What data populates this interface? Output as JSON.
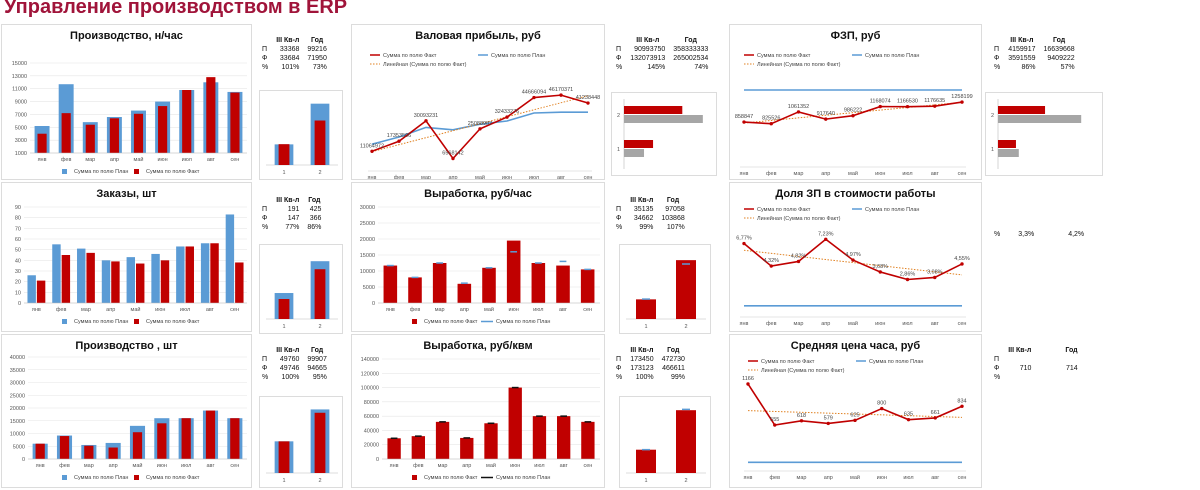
{
  "page": {
    "title": "Управление производством в ERP"
  },
  "colors": {
    "plan": "#5b9bd5",
    "fact": "#c00000",
    "trend": "#e08020",
    "grid": "#e6e6e6",
    "grey": "#a6a6a6",
    "title": "#a0143a"
  },
  "months": [
    "янв",
    "фев",
    "мар",
    "апр",
    "май",
    "июн",
    "июл",
    "авг",
    "сен"
  ],
  "legend": {
    "plan": "Сумма по полю План",
    "fact": "Сумма по полю Факт",
    "trend": "Линейная (Сумма по полю Факт)"
  },
  "stats_header": {
    "q": "III Кв-л",
    "year": "Год"
  },
  "chart_data": [
    {
      "id": "prod_hour",
      "type": "bar",
      "title": "Производство, н/час",
      "categories": [
        "янв",
        "фев",
        "мар",
        "апр",
        "май",
        "июн",
        "июл",
        "авг",
        "сен"
      ],
      "series": [
        {
          "name": "Сумма по полю План",
          "values": [
            5200,
            11700,
            5800,
            6600,
            7600,
            9000,
            10800,
            12000,
            10500
          ]
        },
        {
          "name": "Сумма по полю Факт",
          "values": [
            4000,
            7200,
            5400,
            6400,
            7100,
            8300,
            10800,
            12800,
            10400
          ]
        }
      ],
      "yticks": [
        1000,
        3000,
        5000,
        7000,
        9000,
        11000,
        13000,
        15000
      ],
      "ylim": [
        1000,
        15000
      ],
      "tick_labels": [
        "1000",
        "3000",
        "5000",
        "7000",
        "9000",
        "11000",
        "13000",
        "15000"
      ]
    },
    {
      "id": "orders",
      "type": "bar",
      "title": "Заказы, шт",
      "categories": [
        "янв",
        "фев",
        "мар",
        "апр",
        "май",
        "июн",
        "июл",
        "авг",
        "сен"
      ],
      "series": [
        {
          "name": "Сумма по полю План",
          "values": [
            26,
            55,
            51,
            40,
            43,
            46,
            53,
            56,
            83
          ]
        },
        {
          "name": "Сумма по полю Факт",
          "values": [
            21,
            45,
            47,
            39,
            37,
            40,
            53,
            56,
            38
          ]
        }
      ],
      "yticks": [
        0,
        10,
        20,
        30,
        40,
        50,
        60,
        70,
        80,
        90
      ],
      "ylim": [
        0,
        90
      ],
      "tick_labels": [
        "0",
        "10",
        "20",
        "30",
        "40",
        "50",
        "60",
        "70",
        "80",
        "90"
      ]
    },
    {
      "id": "prod_pcs",
      "type": "bar",
      "title": "Производство , шт",
      "categories": [
        "янв",
        "фев",
        "мар",
        "апр",
        "май",
        "июн",
        "июл",
        "авг",
        "сен"
      ],
      "series": [
        {
          "name": "Сумма по полю План",
          "values": [
            6000,
            9200,
            5500,
            6300,
            13000,
            16000,
            16000,
            19000,
            16000
          ]
        },
        {
          "name": "Сумма по полю Факт",
          "values": [
            6000,
            9000,
            5200,
            4500,
            10500,
            14000,
            16000,
            19000,
            16000
          ]
        }
      ],
      "yticks": [
        0,
        5000,
        10000,
        15000,
        20000,
        25000,
        30000,
        35000,
        40000
      ],
      "ylim": [
        0,
        40000
      ],
      "tick_labels": [
        "0",
        "5000",
        "10000",
        "15000",
        "20000",
        "25000",
        "30000",
        "35000",
        "40000"
      ]
    },
    {
      "id": "gross_profit",
      "type": "line",
      "title": "Валовая прибыль, руб",
      "categories": [
        "янв",
        "фев",
        "мар",
        "апр",
        "май",
        "июн",
        "июл",
        "авг",
        "сен"
      ],
      "series": [
        {
          "name": "Сумма по полю Факт",
          "values": [
            11064972,
            17353506,
            30093231,
            6568142,
            25088987,
            32433276,
            44666094,
            46170371,
            41238448
          ]
        },
        {
          "name": "Сумма по полю План",
          "values": [
            15500000,
            20000000,
            26000000,
            24500000,
            28000000,
            30000000,
            35000000,
            35500000,
            35500000
          ]
        }
      ],
      "labels": [
        "11064972",
        "17353506",
        "30093231",
        "6568142",
        "25088987",
        "32433276",
        "44666094",
        "46170371",
        "41238448"
      ],
      "ylim": [
        0,
        60000000
      ]
    },
    {
      "id": "output_hour",
      "type": "bar",
      "title": "Выработка, руб/час",
      "categories": [
        "янв",
        "фев",
        "мар",
        "апр",
        "май",
        "июн",
        "июл",
        "авг",
        "сен"
      ],
      "series": [
        {
          "name": "Сумма по полю Факт",
          "values": [
            11700,
            8000,
            12500,
            6000,
            11000,
            19500,
            12500,
            11700,
            10500
          ]
        },
        {
          "name": "Сумма по полю План",
          "values": [
            11700,
            8000,
            12500,
            6200,
            11000,
            16000,
            12500,
            13000,
            10500
          ]
        }
      ],
      "yticks": [
        0,
        5000,
        10000,
        15000,
        20000,
        25000,
        30000
      ],
      "ylim": [
        0,
        30000
      ],
      "tick_labels": [
        "0",
        "5000",
        "10000",
        "15000",
        "20000",
        "25000",
        "30000"
      ]
    },
    {
      "id": "output_sqm",
      "type": "bar",
      "title": "Выработка, руб/квм",
      "categories": [
        "янв",
        "фев",
        "мар",
        "апр",
        "май",
        "июн",
        "июл",
        "авг",
        "сен"
      ],
      "series": [
        {
          "name": "Сумма по полю Факт",
          "values": [
            29000,
            32000,
            52000,
            29500,
            50000,
            100000,
            60000,
            60000,
            52000
          ]
        },
        {
          "name": "Сумма по полю План",
          "values": [
            29000,
            32000,
            52000,
            29500,
            50000,
            100000,
            60000,
            60000,
            52000
          ]
        }
      ],
      "yticks": [
        0,
        20000,
        40000,
        60000,
        80000,
        100000,
        120000,
        140000
      ],
      "ylim": [
        0,
        140000
      ],
      "tick_labels": [
        "0",
        "20000",
        "40000",
        "60000",
        "80000",
        "100000",
        "120000",
        "140000"
      ]
    },
    {
      "id": "fzp",
      "type": "line",
      "title": "ФЗП, руб",
      "categories": [
        "янв",
        "фев",
        "мар",
        "апр",
        "май",
        "июн",
        "июл",
        "авг",
        "сен"
      ],
      "series": [
        {
          "name": "Сумма по полю Факт",
          "values": [
            858847,
            825526,
            1061352,
            917640,
            986222,
            1168074,
            1166530,
            1176635,
            1258199
          ]
        },
        {
          "name": "Сумма по полю План",
          "values": [
            1500000,
            1500000,
            1500000,
            1500000,
            1500000,
            1500000,
            1500000,
            1500000,
            1500000
          ]
        }
      ],
      "labels": [
        "858847",
        "825526",
        "1061352",
        "917640",
        "986222",
        "1168074",
        "1166530",
        "1176635",
        "1258199"
      ],
      "ylim": [
        0,
        2000000
      ]
    },
    {
      "id": "zp_share",
      "type": "line",
      "title": "Доля ЗП в стоимости работы",
      "categories": [
        "янв",
        "фев",
        "мар",
        "апр",
        "май",
        "июн",
        "июл",
        "авг",
        "сен"
      ],
      "series": [
        {
          "name": "Сумма по полю Факт",
          "values": [
            6.77,
            4.32,
            4.82,
            7.23,
            4.97,
            3.68,
            2.86,
            3.08,
            4.55
          ]
        },
        {
          "name": "Сумма по полю План",
          "values": [
            0,
            0,
            0,
            0,
            0,
            0,
            0,
            0,
            0
          ]
        }
      ],
      "labels": [
        "6,77%",
        "4,32%",
        "4,82%",
        "7,23%",
        "4,97%",
        "3,68%",
        "2,86%",
        "3,08%",
        "4,55%"
      ],
      "ylim": [
        -1,
        9
      ]
    },
    {
      "id": "avg_price_hour",
      "type": "line",
      "title": "Средняя цена часа, руб",
      "categories": [
        "янв",
        "фев",
        "мар",
        "апр",
        "май",
        "июн",
        "июл",
        "авг",
        "сен"
      ],
      "series": [
        {
          "name": "Сумма по полю Факт",
          "values": [
            1166,
            555,
            618,
            579,
            625,
            800,
            635,
            661,
            834
          ]
        },
        {
          "name": "Сумма по полю План",
          "values": [
            0,
            0,
            0,
            0,
            0,
            0,
            0,
            0,
            0
          ]
        }
      ],
      "labels": [
        "1166",
        "555",
        "618",
        "579",
        "625",
        "800",
        "635",
        "661",
        "834"
      ],
      "ylim": [
        -100,
        1300
      ]
    },
    {
      "id": "mini_prod_hour",
      "type": "bar",
      "categories": [
        "1",
        "2"
      ],
      "series": [
        {
          "name": "План",
          "values": [
            33368,
            99216
          ]
        },
        {
          "name": "Факт",
          "values": [
            33684,
            71950
          ]
        }
      ],
      "ylim": [
        0,
        110000
      ]
    },
    {
      "id": "mini_orders",
      "type": "bar",
      "categories": [
        "1",
        "2"
      ],
      "series": [
        {
          "name": "План",
          "values": [
            191,
            425
          ]
        },
        {
          "name": "Факт",
          "values": [
            147,
            366
          ]
        }
      ],
      "ylim": [
        0,
        500
      ]
    },
    {
      "id": "mini_prod_pcs",
      "type": "bar",
      "categories": [
        "1",
        "2"
      ],
      "series": [
        {
          "name": "План",
          "values": [
            49760,
            99907
          ]
        },
        {
          "name": "Факт",
          "values": [
            49746,
            94665
          ]
        }
      ],
      "ylim": [
        0,
        110000
      ]
    },
    {
      "id": "mini_profit",
      "type": "hbar",
      "categories": [
        "1",
        "2"
      ],
      "series": [
        {
          "name": "Факт",
          "values": [
            132073913,
            265002534
          ]
        },
        {
          "name": "План",
          "values": [
            90993750,
            358333333
          ]
        }
      ],
      "xlim": [
        0,
        400000000
      ]
    },
    {
      "id": "mini_output_hour",
      "type": "bar",
      "categories": [
        "1",
        "2"
      ],
      "series": [
        {
          "name": "Факт",
          "values": [
            34662,
            103868
          ]
        },
        {
          "name": "План",
          "values": [
            35135,
            97058
          ]
        }
      ],
      "ylim": [
        0,
        120000
      ]
    },
    {
      "id": "mini_output_sqm",
      "type": "bar",
      "categories": [
        "1",
        "2"
      ],
      "series": [
        {
          "name": "Факт",
          "values": [
            173123,
            466611
          ]
        },
        {
          "name": "План",
          "values": [
            173450,
            472730
          ]
        }
      ],
      "ylim": [
        0,
        520000
      ]
    },
    {
      "id": "mini_fzp",
      "type": "hbar",
      "categories": [
        "1",
        "2"
      ],
      "series": [
        {
          "name": "Факт",
          "values": [
            3591559,
            9409222
          ]
        },
        {
          "name": "План",
          "values": [
            4159917,
            16639668
          ]
        }
      ],
      "xlim": [
        0,
        20000000
      ]
    }
  ],
  "stats": {
    "prod_hour": {
      "rows": [
        [
          "П",
          "33368",
          "99216"
        ],
        [
          "Ф",
          "33684",
          "71950"
        ],
        [
          "%",
          "101%",
          "73%"
        ]
      ]
    },
    "orders": {
      "rows": [
        [
          "П",
          "191",
          "425"
        ],
        [
          "Ф",
          "147",
          "366"
        ],
        [
          "%",
          "77%",
          "86%"
        ]
      ]
    },
    "prod_pcs": {
      "rows": [
        [
          "П",
          "49760",
          "99907"
        ],
        [
          "Ф",
          "49746",
          "94665"
        ],
        [
          "%",
          "100%",
          "95%"
        ]
      ]
    },
    "gross_profit": {
      "rows": [
        [
          "П",
          "90993750",
          "358333333"
        ],
        [
          "Ф",
          "132073913",
          "265002534"
        ],
        [
          "%",
          "145%",
          "74%"
        ]
      ]
    },
    "output_hour": {
      "rows": [
        [
          "П",
          "35135",
          "97058"
        ],
        [
          "Ф",
          "34662",
          "103868"
        ],
        [
          "%",
          "99%",
          "107%"
        ]
      ]
    },
    "output_sqm": {
      "rows": [
        [
          "П",
          "173450",
          "472730"
        ],
        [
          "Ф",
          "173123",
          "466611"
        ],
        [
          "%",
          "100%",
          "99%"
        ]
      ]
    },
    "fzp": {
      "rows": [
        [
          "П",
          "4159917",
          "16639668"
        ],
        [
          "Ф",
          "3591559",
          "9409222"
        ],
        [
          "%",
          "86%",
          "57%"
        ]
      ]
    },
    "zp_share": {
      "rows": [
        [
          "%",
          "3,3%",
          "4,2%"
        ]
      ]
    },
    "avg_price_hour": {
      "rows": [
        [
          "П",
          "",
          ""
        ],
        [
          "Ф",
          "710",
          "714"
        ],
        [
          "%",
          "",
          ""
        ]
      ]
    }
  }
}
